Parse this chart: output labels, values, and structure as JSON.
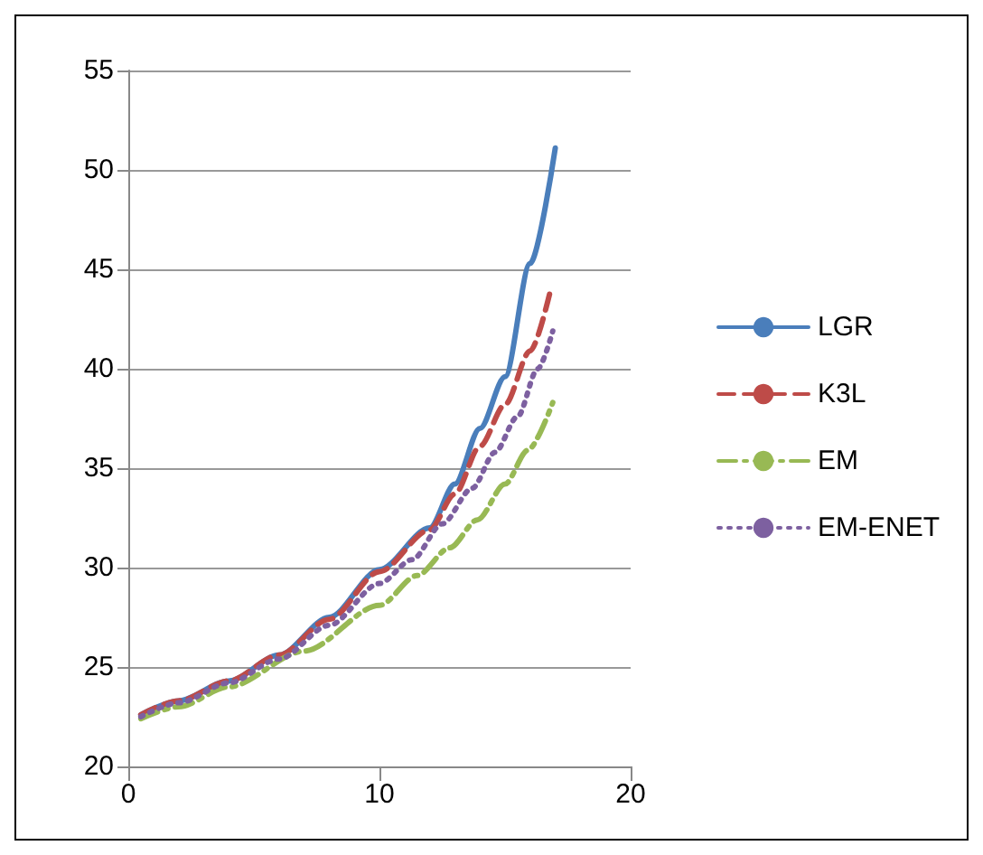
{
  "chart_data": {
    "type": "line",
    "xlim": [
      0,
      20
    ],
    "xticks": [
      0,
      10,
      20
    ],
    "ylim": [
      20,
      55
    ],
    "yticks": [
      20,
      25,
      30,
      35,
      40,
      45,
      50,
      55
    ],
    "grid": "y",
    "legend": "right",
    "marker": "none",
    "series": [
      {
        "name": "LGR",
        "color": "#4a7ebb",
        "line_style": "solid",
        "x": [
          0.5,
          2,
          4,
          6,
          8,
          10,
          12,
          13,
          14,
          15,
          16,
          17
        ],
        "values": [
          22.6,
          23.3,
          24.3,
          25.6,
          27.5,
          29.9,
          32.0,
          34.2,
          37.0,
          39.6,
          45.3,
          51.1
        ]
      },
      {
        "name": "K3L",
        "color": "#be4b48",
        "line_style": "dashed",
        "x": [
          0.5,
          2,
          4,
          6,
          8,
          10,
          12,
          13,
          14,
          15,
          16,
          16.8
        ],
        "values": [
          22.6,
          23.3,
          24.3,
          25.6,
          27.4,
          29.8,
          31.9,
          33.7,
          36.1,
          38.2,
          40.9,
          43.9
        ]
      },
      {
        "name": "EM",
        "color": "#98b954",
        "line_style": "dashdot",
        "x": [
          0.5,
          2,
          4,
          7,
          10,
          11.5,
          12.8,
          13.9,
          15,
          15.9,
          16.9
        ],
        "values": [
          22.4,
          23.0,
          24.0,
          25.8,
          28.1,
          29.6,
          31.0,
          32.4,
          34.2,
          35.9,
          38.3
        ]
      },
      {
        "name": "EM-ENET",
        "color": "#7d60a0",
        "line_style": "dotted",
        "x": [
          0.5,
          2,
          4,
          6,
          8,
          10,
          11.3,
          12.5,
          13.7,
          14.6,
          15.5,
          16.3,
          16.9
        ],
        "values": [
          22.5,
          23.2,
          24.2,
          25.4,
          27.1,
          29.2,
          30.4,
          32.2,
          34.0,
          35.8,
          37.6,
          40.0,
          41.9
        ]
      }
    ]
  }
}
